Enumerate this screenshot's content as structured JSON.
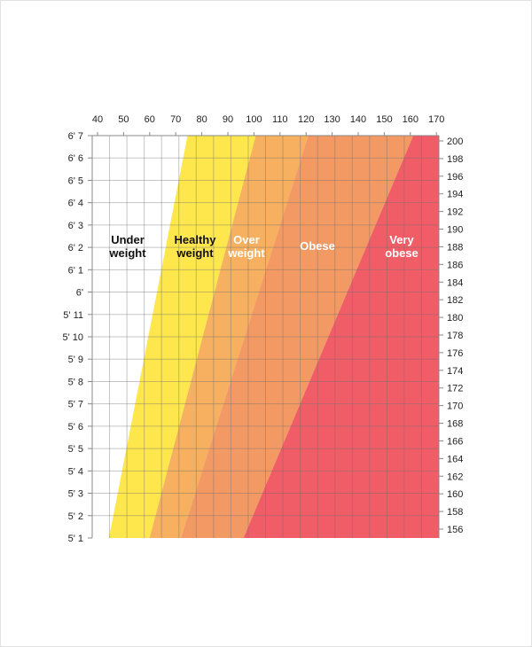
{
  "chart_data": {
    "type": "area",
    "title": "",
    "x_axis": {
      "position": "top",
      "unit": "kg",
      "ticks": [
        40,
        50,
        60,
        70,
        80,
        90,
        100,
        110,
        120,
        130,
        140,
        150,
        160,
        170
      ],
      "range": [
        38,
        171
      ]
    },
    "y_axis_left": {
      "unit": "feet/inches",
      "ticks": [
        "6' 7",
        "6' 6",
        "6' 5",
        "6' 4",
        "6' 3",
        "6' 2",
        "6' 1",
        "6'",
        "5' 11",
        "5' 10",
        "5' 9",
        "5' 8",
        "5' 7",
        "5' 6",
        "5' 5",
        "5' 4",
        "5' 3",
        "5' 2",
        "5' 1"
      ],
      "range_inches": [
        61,
        79
      ]
    },
    "y_axis_right": {
      "unit": "cm",
      "ticks": [
        200,
        198,
        196,
        194,
        192,
        190,
        188,
        186,
        184,
        182,
        180,
        178,
        176,
        174,
        172,
        170,
        168,
        166,
        164,
        162,
        160,
        158,
        156
      ]
    },
    "grid": true,
    "bands": [
      {
        "lines": [
          "Under",
          "weight"
        ],
        "bmi_range": [
          0,
          18.5
        ],
        "color": "#ffffff",
        "text_color": "#111111"
      },
      {
        "lines": [
          "Healthy",
          "weight"
        ],
        "bmi_range": [
          18.5,
          25
        ],
        "color": "#fde74c",
        "text_color": "#111111"
      },
      {
        "lines": [
          "Over",
          "weight"
        ],
        "bmi_range": [
          25,
          30
        ],
        "color": "#f6b060",
        "text_color": "#ffffff"
      },
      {
        "lines": [
          "Obese"
        ],
        "bmi_range": [
          30,
          40
        ],
        "color": "#f39a64",
        "text_color": "#ffffff"
      },
      {
        "lines": [
          "Very",
          "obese"
        ],
        "bmi_range": [
          40,
          null
        ],
        "color": "#f05d67",
        "text_color": "#ffffff"
      }
    ]
  }
}
